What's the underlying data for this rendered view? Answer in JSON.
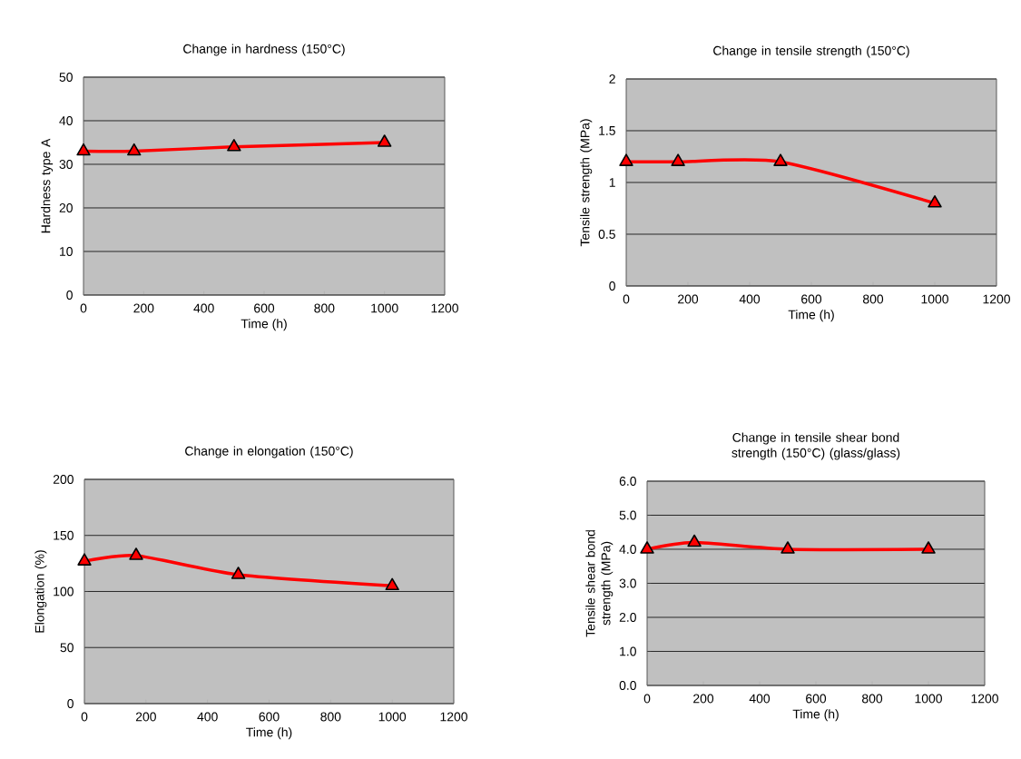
{
  "chart_data": [
    {
      "type": "line",
      "title": "Change in hardness (150°C)",
      "xlabel": "Time (h)",
      "ylabel": "Hardness type A",
      "x": [
        0,
        168,
        500,
        1000
      ],
      "series": [
        {
          "color": "#ff0000",
          "values": [
            33,
            33,
            34,
            35
          ]
        }
      ],
      "xlim": [
        0,
        1200
      ],
      "xticks": [
        0,
        200,
        400,
        600,
        800,
        1000,
        1200
      ],
      "ylim": [
        0,
        50
      ],
      "yticks": [
        0,
        10,
        20,
        30,
        40,
        50
      ],
      "grid": "y",
      "marker": "triangle"
    },
    {
      "type": "line",
      "title": "Change in tensile strength (150°C)",
      "xlabel": "Time (h)",
      "ylabel": "Tensile strength (MPa)",
      "x": [
        0,
        168,
        500,
        1000
      ],
      "series": [
        {
          "color": "#ff0000",
          "values": [
            1.2,
            1.2,
            1.2,
            0.8
          ]
        }
      ],
      "xlim": [
        0,
        1200
      ],
      "xticks": [
        0,
        200,
        400,
        600,
        800,
        1000,
        1200
      ],
      "ylim": [
        0,
        2
      ],
      "yticks": [
        0,
        0.5,
        1,
        1.5,
        2
      ],
      "grid": "y",
      "marker": "triangle"
    },
    {
      "type": "line",
      "title": "Change in elongation (150°C)",
      "xlabel": "Time (h)",
      "ylabel": "Elongation (%)",
      "x": [
        0,
        168,
        500,
        1000
      ],
      "series": [
        {
          "color": "#ff0000",
          "values": [
            127,
            132,
            115,
            105
          ]
        }
      ],
      "xlim": [
        0,
        1200
      ],
      "xticks": [
        0,
        200,
        400,
        600,
        800,
        1000,
        1200
      ],
      "ylim": [
        0,
        200
      ],
      "yticks": [
        0,
        50,
        100,
        150,
        200
      ],
      "grid": "y",
      "marker": "triangle"
    },
    {
      "type": "line",
      "title": "Change in tensile shear bond strength (150°C) (glass/glass)",
      "xlabel": "Time (h)",
      "ylabel": "Tensile shear bond strength (MPa)",
      "x": [
        0,
        168,
        500,
        1000
      ],
      "series": [
        {
          "color": "#ff0000",
          "values": [
            4.0,
            4.2,
            4.0,
            4.0
          ]
        }
      ],
      "xlim": [
        0,
        1200
      ],
      "xticks": [
        0,
        200,
        400,
        600,
        800,
        1000,
        1200
      ],
      "ylim": [
        0,
        6
      ],
      "yticks": [
        {
          "value": 0,
          "label": "0.0"
        },
        {
          "value": 1,
          "label": "1.0"
        },
        {
          "value": 2,
          "label": "2.0"
        },
        {
          "value": 3,
          "label": "3.0"
        },
        {
          "value": 4,
          "label": "4.0"
        },
        {
          "value": 5,
          "label": "5.0"
        },
        {
          "value": 6,
          "label": "6.0"
        }
      ],
      "grid": "y",
      "marker": "triangle"
    }
  ]
}
